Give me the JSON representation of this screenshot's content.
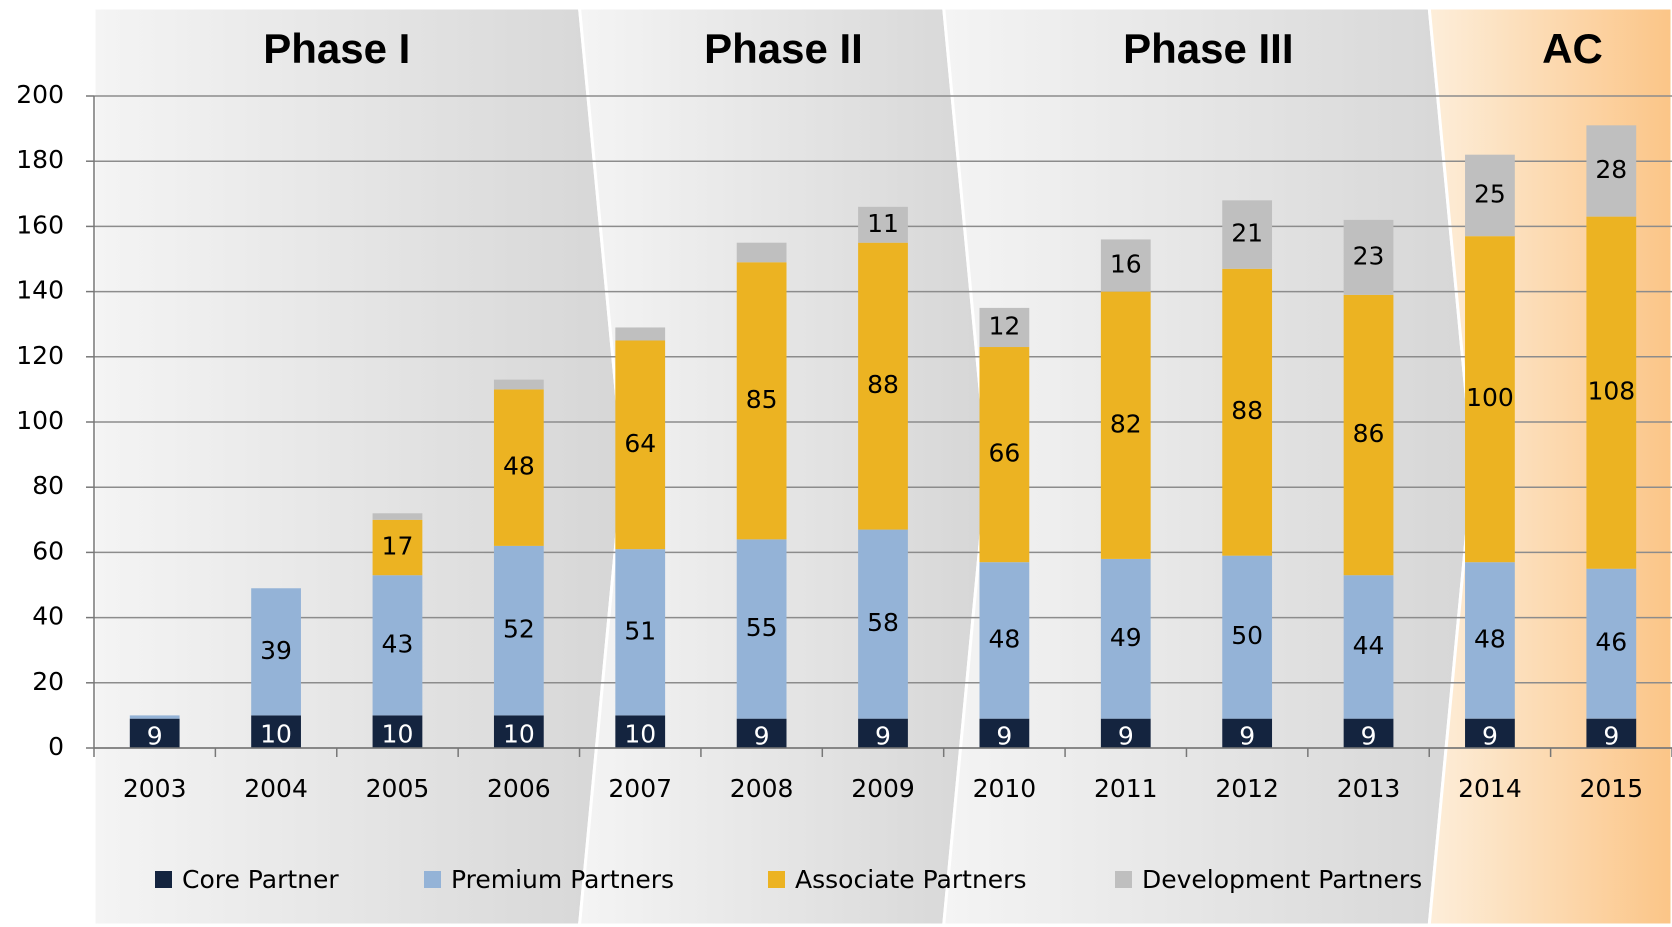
{
  "chart_data": {
    "type": "stacked_bar",
    "categories": [
      "2003",
      "2004",
      "2005",
      "2006",
      "2007",
      "2008",
      "2009",
      "2010",
      "2011",
      "2012",
      "2013",
      "2014",
      "2015"
    ],
    "series": [
      {
        "name": "Core Partner",
        "color": "#14243f",
        "values": [
          9,
          10,
          10,
          10,
          10,
          9,
          9,
          9,
          9,
          9,
          9,
          9,
          9
        ]
      },
      {
        "name": "Premium Partners",
        "color": "#94b3d7",
        "values": [
          1,
          39,
          43,
          52,
          51,
          55,
          58,
          48,
          49,
          50,
          44,
          48,
          46
        ]
      },
      {
        "name": "Associate Partners",
        "color": "#ecb322",
        "values": [
          0,
          0,
          17,
          48,
          64,
          85,
          88,
          66,
          82,
          88,
          86,
          100,
          108
        ]
      },
      {
        "name": "Development Partners",
        "color": "#bfbfbf",
        "values": [
          0,
          0,
          2,
          3,
          4,
          6,
          11,
          12,
          16,
          21,
          23,
          25,
          28
        ]
      }
    ],
    "phases": [
      {
        "label": "Phase I",
        "from": "2003",
        "to": "2006",
        "highlight": false
      },
      {
        "label": "Phase II",
        "from": "2007",
        "to": "2009",
        "highlight": false
      },
      {
        "label": "Phase III",
        "from": "2010",
        "to": "2013",
        "highlight": false
      },
      {
        "label": "AC",
        "from": "2014",
        "to": "2015",
        "highlight": true
      }
    ],
    "ylim": [
      0,
      200
    ],
    "yticks": [
      0,
      20,
      40,
      60,
      80,
      100,
      120,
      140,
      160,
      180,
      200
    ],
    "grid": true,
    "legend": "bottom"
  }
}
